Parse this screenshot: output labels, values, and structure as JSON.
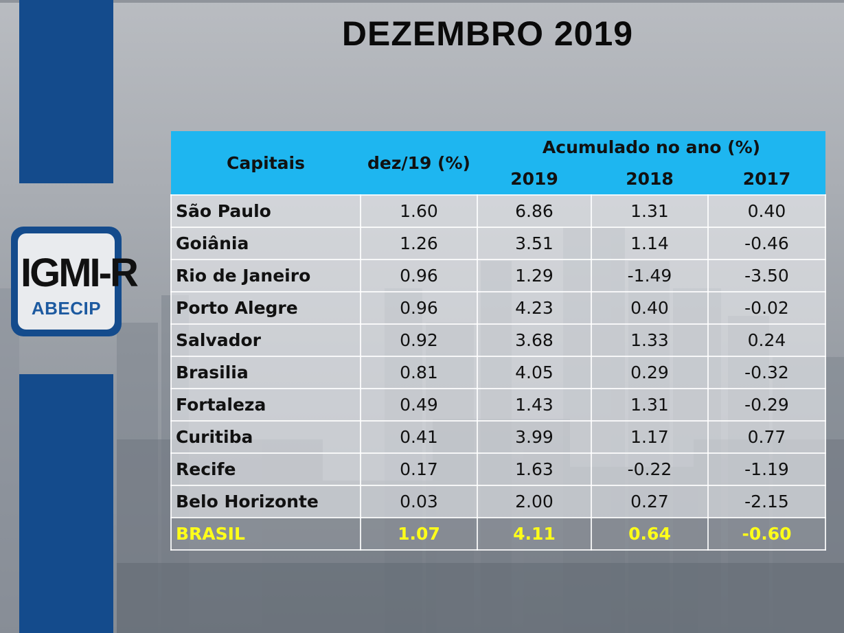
{
  "slide": {
    "title": "DEZEMBRO 2019",
    "logo": {
      "main_text": "IGMI-R",
      "sub_text": "ABECIP",
      "colors": {
        "frame": "#144b8c",
        "sub": "#1d5aa0"
      }
    }
  },
  "table": {
    "headers": {
      "city": "Capitais",
      "month": "dez/19 (%)",
      "accum_group": "Acumulado no ano (%)",
      "years": [
        "2019",
        "2018",
        "2017"
      ]
    },
    "rows": [
      {
        "city": "São Paulo",
        "month": "1.60",
        "y2019": "6.86",
        "y2018": "1.31",
        "y2017": "0.40"
      },
      {
        "city": "Goiânia",
        "month": "1.26",
        "y2019": "3.51",
        "y2018": "1.14",
        "y2017": "-0.46"
      },
      {
        "city": "Rio de Janeiro",
        "month": "0.96",
        "y2019": "1.29",
        "y2018": "-1.49",
        "y2017": "-3.50"
      },
      {
        "city": "Porto Alegre",
        "month": "0.96",
        "y2019": "4.23",
        "y2018": "0.40",
        "y2017": "-0.02"
      },
      {
        "city": "Salvador",
        "month": "0.92",
        "y2019": "3.68",
        "y2018": "1.33",
        "y2017": "0.24"
      },
      {
        "city": "Brasilia",
        "month": "0.81",
        "y2019": "4.05",
        "y2018": "0.29",
        "y2017": "-0.32"
      },
      {
        "city": "Fortaleza",
        "month": "0.49",
        "y2019": "1.43",
        "y2018": "1.31",
        "y2017": "-0.29"
      },
      {
        "city": "Curitiba",
        "month": "0.41",
        "y2019": "3.99",
        "y2018": "1.17",
        "y2017": "0.77"
      },
      {
        "city": "Recife",
        "month": "0.17",
        "y2019": "1.63",
        "y2018": "-0.22",
        "y2017": "-1.19"
      },
      {
        "city": "Belo Horizonte",
        "month": "0.03",
        "y2019": "2.00",
        "y2018": "0.27",
        "y2017": "-2.15"
      }
    ],
    "total": {
      "city": "BRASIL",
      "month": "1.07",
      "y2019": "4.11",
      "y2018": "0.64",
      "y2017": "-0.60"
    },
    "colors": {
      "header_bg": "#1eb6f0",
      "total_text": "#ffff1a"
    }
  }
}
